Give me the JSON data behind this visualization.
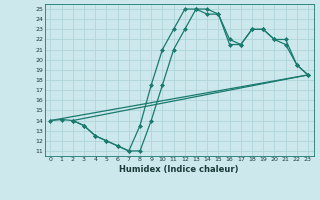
{
  "xlabel": "Humidex (Indice chaleur)",
  "bg_color": "#cce8ec",
  "grid_color": "#b0d4d8",
  "line_color": "#1a7a6e",
  "line1_x": [
    0,
    1,
    2,
    3,
    4,
    5,
    6,
    7,
    8,
    9,
    10,
    11,
    12,
    13,
    14,
    15,
    16,
    17,
    18,
    19,
    20,
    21,
    22,
    23
  ],
  "line1_y": [
    14,
    14.1,
    14,
    13.5,
    12.5,
    12,
    11.5,
    11,
    13.5,
    17.5,
    21,
    23,
    25,
    25,
    24.5,
    24.5,
    22,
    21.5,
    23,
    23,
    22,
    21.5,
    19.5,
    18.5
  ],
  "line2_x": [
    2,
    3,
    4,
    5,
    6,
    7,
    8,
    9,
    10,
    11,
    12,
    13,
    14,
    15,
    16,
    17,
    18,
    19,
    20,
    21,
    22,
    23
  ],
  "line2_y": [
    14,
    13.5,
    12.5,
    12,
    11.5,
    11,
    11,
    14,
    17.5,
    21,
    23,
    25,
    25,
    24.5,
    21.5,
    21.5,
    23,
    23,
    22,
    22,
    19.5,
    18.5
  ],
  "line3_x": [
    0,
    23
  ],
  "line3_y": [
    14,
    18.5
  ],
  "line4_x": [
    2,
    23
  ],
  "line4_y": [
    14,
    18.5
  ],
  "xticks": [
    0,
    1,
    2,
    3,
    4,
    5,
    6,
    7,
    8,
    9,
    10,
    11,
    12,
    13,
    14,
    15,
    16,
    17,
    18,
    19,
    20,
    21,
    22,
    23
  ],
  "yticks": [
    11,
    12,
    13,
    14,
    15,
    16,
    17,
    18,
    19,
    20,
    21,
    22,
    23,
    24,
    25
  ],
  "xlim": [
    -0.5,
    23.5
  ],
  "ylim": [
    10.5,
    25.5
  ],
  "linewidth": 0.9,
  "marker_size": 2.5
}
